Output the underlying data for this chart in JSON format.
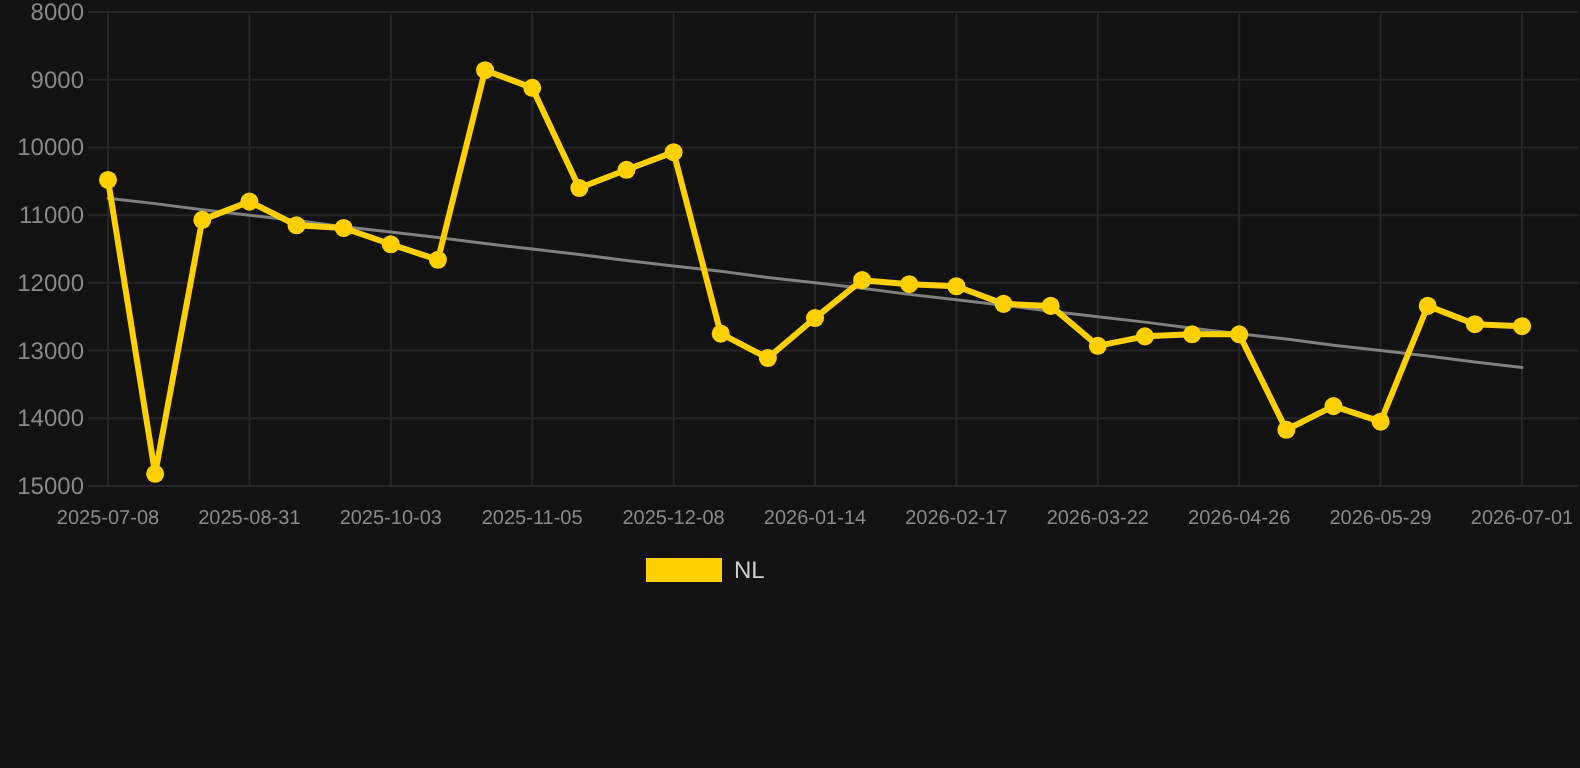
{
  "chart_data": {
    "type": "line",
    "categories": [
      "2025-07-08",
      null,
      null,
      "2025-08-31",
      null,
      null,
      "2025-10-03",
      null,
      null,
      "2025-11-05",
      null,
      null,
      "2025-12-08",
      null,
      null,
      "2026-01-14",
      null,
      null,
      "2026-02-17",
      null,
      null,
      "2026-03-22",
      null,
      null,
      "2026-04-26",
      null,
      null,
      "2026-05-29",
      null,
      null,
      "2026-07-01"
    ],
    "ylim": [
      15000,
      8000
    ],
    "yticks": [
      8000,
      9000,
      10000,
      11000,
      12000,
      13000,
      14000,
      15000
    ],
    "grid": true,
    "legend": "bottom",
    "marker": "circle",
    "series": [
      {
        "name": "NL",
        "color": "#ffd000",
        "values": [
          10480,
          14820,
          11070,
          10800,
          11150,
          11190,
          11430,
          11660,
          8860,
          9120,
          10600,
          10330,
          10070,
          12750,
          13110,
          12520,
          11960,
          12020,
          12050,
          12310,
          12340,
          12930,
          12790,
          12760,
          12760,
          14170,
          13820,
          14050,
          12340,
          12610,
          12640
        ]
      },
      {
        "type": "line",
        "color": "#808080",
        "marker": "none",
        "values": [
          10750,
          10830,
          10920,
          11000,
          11080,
          11170,
          11250,
          11330,
          11420,
          11500,
          11580,
          11670,
          11750,
          11830,
          11920,
          12000,
          12080,
          12170,
          12250,
          12330,
          12420,
          12500,
          12580,
          12670,
          12750,
          12830,
          12920,
          13000,
          13080,
          13170,
          13250
        ]
      }
    ]
  }
}
